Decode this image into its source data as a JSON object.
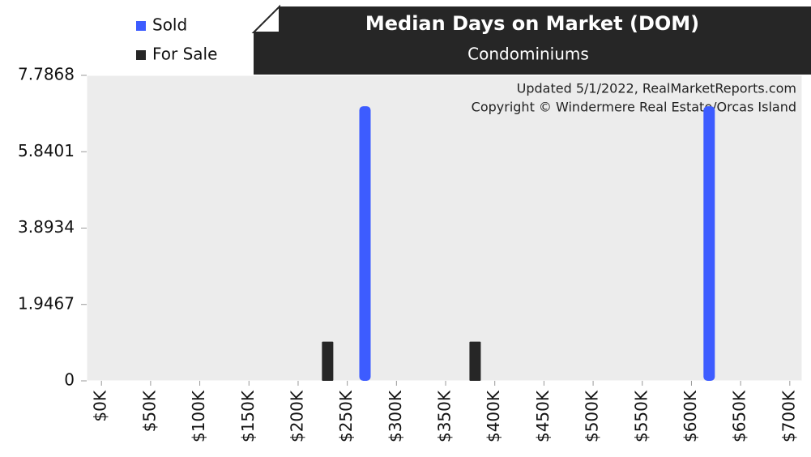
{
  "chart_data": {
    "type": "bar",
    "title": "Median Days on Market (DOM)",
    "subtitle": "Condominiums",
    "annotations": [
      "Updated 5/1/2022, RealMarketReports.com",
      "Copyright © Windermere Real Estate/Orcas Island"
    ],
    "series": [
      {
        "name": "Sold",
        "color": "#3d5cff",
        "x": [
          268000,
          618000
        ],
        "values": [
          7,
          7
        ]
      },
      {
        "name": "For Sale",
        "color": "#262626",
        "x": [
          230000,
          380000
        ],
        "values": [
          1,
          1
        ]
      }
    ],
    "xlim": [
      -15000,
      712500
    ],
    "xticks": [
      {
        "value": 0,
        "label": "$0K"
      },
      {
        "value": 50000,
        "label": "$50K"
      },
      {
        "value": 100000,
        "label": "$100K"
      },
      {
        "value": 150000,
        "label": "$150K"
      },
      {
        "value": 200000,
        "label": "$200K"
      },
      {
        "value": 250000,
        "label": "$250K"
      },
      {
        "value": 300000,
        "label": "$300K"
      },
      {
        "value": 350000,
        "label": "$350K"
      },
      {
        "value": 400000,
        "label": "$400K"
      },
      {
        "value": 450000,
        "label": "$450K"
      },
      {
        "value": 500000,
        "label": "$500K"
      },
      {
        "value": 550000,
        "label": "$550K"
      },
      {
        "value": 600000,
        "label": "$600K"
      },
      {
        "value": 650000,
        "label": "$650K"
      },
      {
        "value": 700000,
        "label": "$700K"
      }
    ],
    "ylim": [
      0,
      7.7868
    ],
    "yticks": [
      0,
      1.9467,
      3.8934,
      5.8401,
      7.7868
    ]
  }
}
